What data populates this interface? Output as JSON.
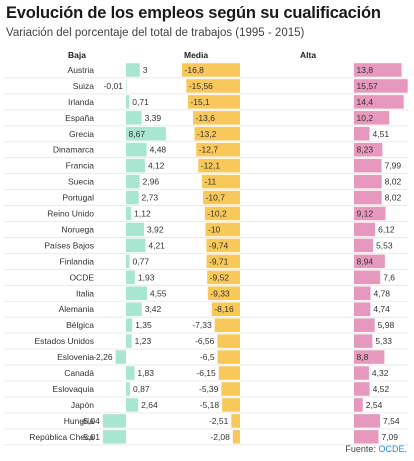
{
  "title": "Evolución de los empleos según su cualificación",
  "subtitle": "Variación del porcentaje del total de trabajos (1995 - 2015)",
  "source": {
    "prefix": "Fuente:",
    "name": "OCDE",
    "suffix": "."
  },
  "colors": {
    "baja": "#a8e6d1",
    "media": "#f9c85a",
    "alta": "#e699bd",
    "text": "#333333",
    "grid": "#e6e6e6"
  },
  "chart_data": {
    "type": "bar",
    "orientation": "horizontal",
    "grid": true,
    "categories": [
      "Austria",
      "Suiza",
      "Irlanda",
      "España",
      "Grecia",
      "Dinamarca",
      "Francia",
      "Suecia",
      "Portugal",
      "Reino Unido",
      "Noruega",
      "Países Bajos",
      "Finlandia",
      "OCDE",
      "Italia",
      "Alemania",
      "Bélgica",
      "Estados Unidos",
      "Eslovenia",
      "Canadá",
      "Eslovaquia",
      "Japón",
      "Hungría",
      "República Checa"
    ],
    "series": [
      {
        "name": "Baja",
        "color": "#a8e6d1",
        "values": [
          3,
          -0.01,
          0.71,
          3.39,
          8.67,
          4.48,
          4.12,
          2.96,
          2.73,
          1.12,
          3.92,
          4.21,
          0.77,
          1.93,
          4.55,
          3.42,
          1.35,
          1.23,
          -2.26,
          1.83,
          0.87,
          2.64,
          -5.04,
          -5.01
        ],
        "labels": [
          "3",
          "-0,01",
          "0,71",
          "3,39",
          "8,67",
          "4,48",
          "4,12",
          "2,96",
          "2,73",
          "1,12",
          "3,92",
          "4,21",
          "0,77",
          "1,93",
          "4,55",
          "3,42",
          "1,35",
          "1,23",
          "-2,26",
          "1,83",
          "0,87",
          "2,64",
          "-5,04",
          "-5,01"
        ]
      },
      {
        "name": "Media",
        "color": "#f9c85a",
        "values": [
          -16.8,
          -15.56,
          -15.1,
          -13.6,
          -13.2,
          -12.7,
          -12.1,
          -11,
          -10.7,
          -10.2,
          -10,
          -9.74,
          -9.71,
          -9.52,
          -9.33,
          -8.16,
          -7.33,
          -6.56,
          -6.5,
          -6.15,
          -5.39,
          -5.18,
          -2.51,
          -2.08
        ],
        "labels": [
          "-16,8",
          "-15,56",
          "-15,1",
          "-13,6",
          "-13,2",
          "-12,7",
          "-12,1",
          "-11",
          "-10,7",
          "-10,2",
          "-10",
          "-9,74",
          "-9,71",
          "-9,52",
          "-9,33",
          "-8,16",
          "-7,33",
          "-6,56",
          "-6,5",
          "-6,15",
          "-5,39",
          "-5,18",
          "-2,51",
          "-2,08"
        ]
      },
      {
        "name": "Alta",
        "color": "#e699bd",
        "values": [
          13.8,
          15.57,
          14.4,
          10.2,
          4.51,
          8.23,
          7.99,
          8.02,
          8.02,
          9.12,
          6.12,
          5.53,
          8.94,
          7.6,
          4.78,
          4.74,
          5.98,
          5.33,
          8.8,
          4.32,
          4.52,
          2.54,
          7.54,
          7.09
        ],
        "labels": [
          "13,8",
          "15,57",
          "14,4",
          "10,2",
          "4,51",
          "8,23",
          "7,99",
          "8,02",
          "8,02",
          "9,12",
          "6,12",
          "5,53",
          "8,94",
          "7,6",
          "4,78",
          "4,74",
          "5,98",
          "5,33",
          "8,8",
          "4,32",
          "4,52",
          "2,54",
          "7,54",
          "7,09"
        ]
      }
    ]
  }
}
